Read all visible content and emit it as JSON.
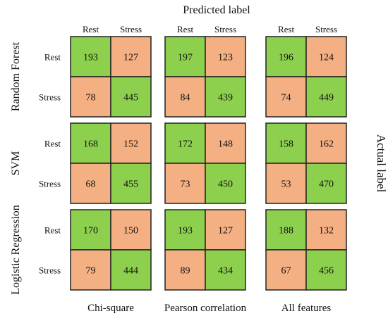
{
  "chart_data": {
    "type": "heatmap",
    "title": "",
    "xlabel": "Predicted label",
    "ylabel": "Actual label",
    "class_labels": [
      "Rest",
      "Stress"
    ],
    "classifiers": [
      "Random Forest",
      "SVM",
      "Logistic Regression"
    ],
    "feature_sets": [
      "Chi-square",
      "Pearson correlation",
      "All features"
    ],
    "matrices": [
      [
        [
          [
            193,
            127
          ],
          [
            78,
            445
          ]
        ],
        [
          [
            197,
            123
          ],
          [
            84,
            439
          ]
        ],
        [
          [
            196,
            124
          ],
          [
            74,
            449
          ]
        ]
      ],
      [
        [
          [
            168,
            152
          ],
          [
            68,
            455
          ]
        ],
        [
          [
            172,
            148
          ],
          [
            73,
            450
          ]
        ],
        [
          [
            158,
            162
          ],
          [
            53,
            470
          ]
        ]
      ],
      [
        [
          [
            170,
            150
          ],
          [
            79,
            444
          ]
        ],
        [
          [
            193,
            127
          ],
          [
            89,
            434
          ]
        ],
        [
          [
            188,
            132
          ],
          [
            67,
            456
          ]
        ]
      ]
    ],
    "colors": {
      "correct": "#8dd04e",
      "incorrect": "#f4b083",
      "border": "#222222"
    }
  }
}
